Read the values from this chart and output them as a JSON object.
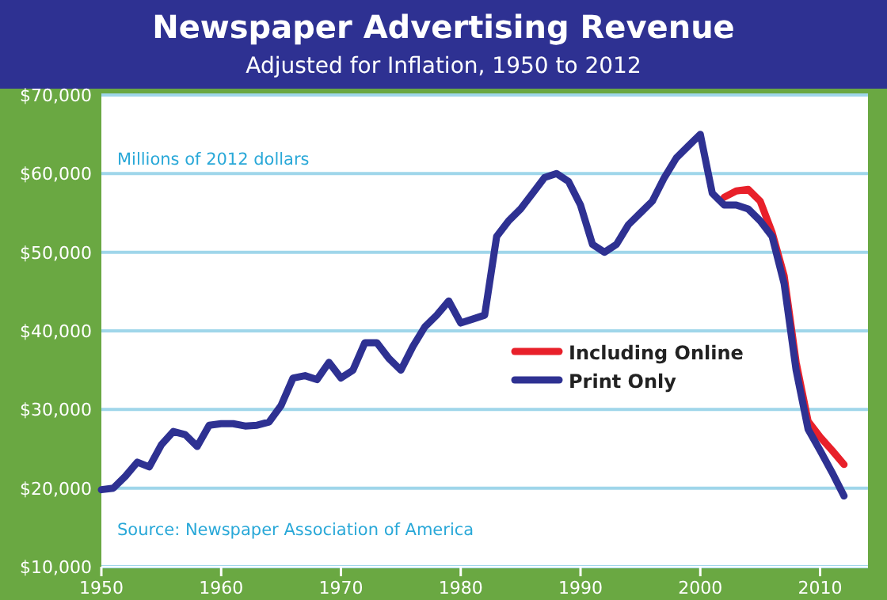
{
  "chart_data": {
    "type": "line",
    "title": "Newspaper Advertising Revenue",
    "subtitle": "Adjusted for Inflation, 1950 to 2012",
    "annotations": [
      "Millions of 2012 dollars",
      "Source: Newspaper Association of America"
    ],
    "xlim": [
      1950,
      2014
    ],
    "xticks": [
      1950,
      1960,
      1970,
      1980,
      1990,
      2000,
      2010
    ],
    "ylim": [
      10000,
      70000
    ],
    "yticks": [
      {
        "value": 10000,
        "label": "$10,000"
      },
      {
        "value": 20000,
        "label": "$20,000"
      },
      {
        "value": 30000,
        "label": "$30,000"
      },
      {
        "value": 40000,
        "label": "$40,000"
      },
      {
        "value": 50000,
        "label": "$50,000"
      },
      {
        "value": 60000,
        "label": "$60,000"
      },
      {
        "value": 70000,
        "label": "$70,000"
      }
    ],
    "grid": "y",
    "legend": "right",
    "line_style": "solid",
    "marker": "none",
    "series": [
      {
        "name": "Including Online",
        "color": "#e8202a",
        "x": [
          2002,
          2003,
          2004,
          2005,
          2006,
          2007,
          2008,
          2009,
          2010,
          2011,
          2012
        ],
        "values": [
          57000,
          57800,
          58000,
          56500,
          52500,
          47000,
          36000,
          28500,
          26500,
          24800,
          23000
        ]
      },
      {
        "name": "Print Only",
        "color": "#2e3192",
        "x": [
          1950,
          1951,
          1952,
          1953,
          1954,
          1955,
          1956,
          1957,
          1958,
          1959,
          1960,
          1961,
          1962,
          1963,
          1964,
          1965,
          1966,
          1967,
          1968,
          1969,
          1970,
          1971,
          1972,
          1973,
          1974,
          1975,
          1976,
          1977,
          1978,
          1979,
          1980,
          1981,
          1982,
          1983,
          1984,
          1985,
          1986,
          1987,
          1988,
          1989,
          1990,
          1991,
          1992,
          1993,
          1994,
          1995,
          1996,
          1997,
          1998,
          1999,
          2000,
          2001,
          2002,
          2003,
          2004,
          2005,
          2006,
          2007,
          2008,
          2009,
          2010,
          2011,
          2012
        ],
        "values": [
          19800,
          20000,
          21500,
          23300,
          22700,
          25500,
          27200,
          26800,
          25300,
          28000,
          28200,
          28200,
          27900,
          28000,
          28400,
          30500,
          34000,
          34300,
          33800,
          36000,
          34000,
          35000,
          38500,
          38500,
          36500,
          35000,
          38000,
          40500,
          42000,
          43800,
          41000,
          41500,
          42000,
          52000,
          54000,
          55500,
          57500,
          59500,
          60000,
          59000,
          56000,
          51000,
          50000,
          51000,
          53500,
          55000,
          56500,
          59500,
          62000,
          63500,
          65000,
          57500,
          56000,
          56000,
          55500,
          54000,
          52000,
          46000,
          35000,
          27500,
          24800,
          22000,
          19000
        ]
      }
    ]
  }
}
